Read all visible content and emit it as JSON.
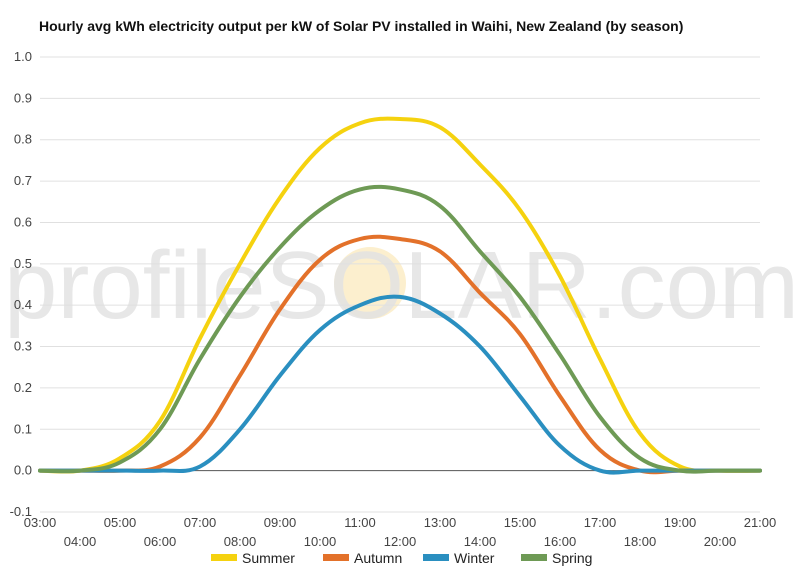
{
  "chart_data": {
    "type": "line",
    "title": "Hourly avg kWh electricity output per kW of Solar PV installed in Waihi, New Zealand (by season)",
    "xlabel": "",
    "ylabel": "",
    "x_tick_labels": [
      "03:00",
      "04:00",
      "05:00",
      "06:00",
      "07:00",
      "08:00",
      "09:00",
      "10:00",
      "11:00",
      "12:00",
      "13:00",
      "14:00",
      "15:00",
      "16:00",
      "17:00",
      "18:00",
      "19:00",
      "20:00",
      "21:00"
    ],
    "x_hours": [
      3,
      4,
      5,
      6,
      7,
      8,
      9,
      10,
      11,
      12,
      13,
      14,
      15,
      16,
      17,
      18,
      19,
      20,
      21
    ],
    "y_ticks": [
      "1.0",
      "0.9",
      "0.8",
      "0.7",
      "0.6",
      "0.5",
      "0.4",
      "0.3",
      "0.2",
      "0.1",
      "0.0",
      "-0.1"
    ],
    "ylim": [
      -0.1,
      1.0
    ],
    "grid": true,
    "legend_position": "bottom",
    "watermark": "profileSOLAR.com",
    "series": [
      {
        "name": "Summer",
        "color": "#f5d20f",
        "values": [
          0.0,
          0.0,
          0.03,
          0.12,
          0.32,
          0.5,
          0.66,
          0.78,
          0.84,
          0.85,
          0.83,
          0.74,
          0.63,
          0.47,
          0.27,
          0.09,
          0.01,
          0.0,
          0.0
        ]
      },
      {
        "name": "Autumn",
        "color": "#e3712a",
        "values": [
          0.0,
          0.0,
          0.0,
          0.01,
          0.08,
          0.23,
          0.39,
          0.51,
          0.56,
          0.56,
          0.53,
          0.43,
          0.33,
          0.18,
          0.05,
          0.0,
          0.0,
          0.0,
          0.0
        ]
      },
      {
        "name": "Winter",
        "color": "#2a8fc0",
        "values": [
          0.0,
          0.0,
          0.0,
          0.0,
          0.01,
          0.1,
          0.23,
          0.34,
          0.4,
          0.42,
          0.38,
          0.3,
          0.18,
          0.06,
          0.0,
          0.0,
          0.0,
          0.0,
          0.0
        ]
      },
      {
        "name": "Spring",
        "color": "#6e9a55",
        "values": [
          0.0,
          0.0,
          0.02,
          0.1,
          0.27,
          0.42,
          0.54,
          0.63,
          0.68,
          0.68,
          0.64,
          0.53,
          0.42,
          0.28,
          0.13,
          0.03,
          0.0,
          0.0,
          0.0
        ]
      }
    ]
  }
}
